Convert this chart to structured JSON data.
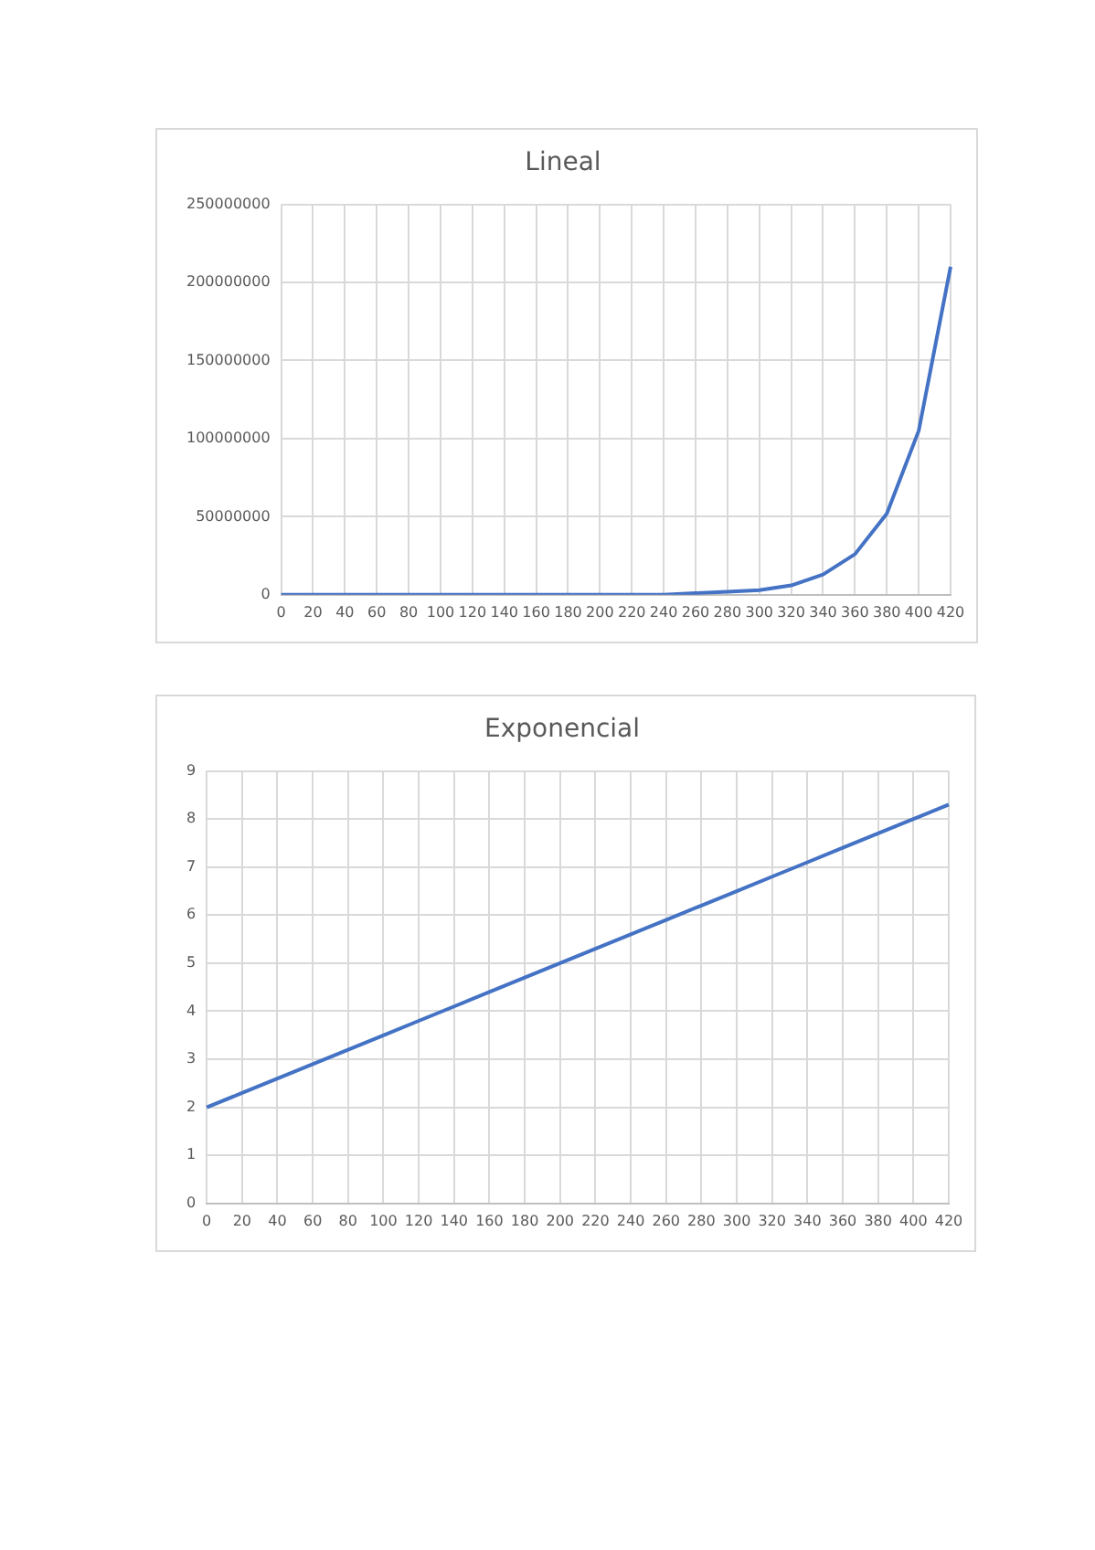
{
  "chart_data": [
    {
      "type": "line",
      "title": "Lineal",
      "categories": [
        "0",
        "20",
        "40",
        "60",
        "80",
        "100",
        "120",
        "140",
        "160",
        "180",
        "200",
        "220",
        "240",
        "260",
        "280",
        "300",
        "320",
        "340",
        "360",
        "380",
        "400",
        "420"
      ],
      "series": [
        {
          "color": "#4472c4",
          "values": [
            0,
            0,
            0,
            0,
            0,
            0,
            0,
            0,
            0,
            0,
            0,
            0,
            0,
            1000000,
            2000000,
            3000000,
            6000000,
            13000000,
            26000000,
            52000000,
            105000000,
            210000000
          ]
        }
      ],
      "ylim": [
        0,
        250000000
      ],
      "yticks": [
        0,
        50000000,
        100000000,
        150000000,
        200000000,
        250000000
      ],
      "grid": true,
      "legend": false,
      "marker": "none",
      "line_style": "solid"
    },
    {
      "type": "line",
      "title": "Exponencial",
      "categories": [
        "0",
        "20",
        "40",
        "60",
        "80",
        "100",
        "120",
        "140",
        "160",
        "180",
        "200",
        "220",
        "240",
        "260",
        "280",
        "300",
        "320",
        "340",
        "360",
        "380",
        "400",
        "420"
      ],
      "series": [
        {
          "color": "#4472c4",
          "values": [
            2,
            2.3,
            2.6,
            2.9,
            3.2,
            3.5,
            3.8,
            4.1,
            4.4,
            4.7,
            5,
            5.3,
            5.6,
            5.9,
            6.2,
            6.5,
            6.8,
            7.1,
            7.4,
            7.7,
            8,
            8.3
          ]
        }
      ],
      "ylim": [
        0,
        9
      ],
      "yticks": [
        0,
        1,
        2,
        3,
        4,
        5,
        6,
        7,
        8,
        9
      ],
      "grid": true,
      "legend": false,
      "marker": "none",
      "line_style": "solid"
    }
  ]
}
